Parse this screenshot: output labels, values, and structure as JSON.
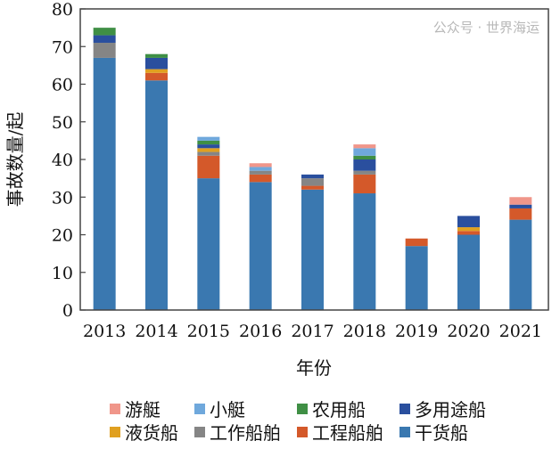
{
  "chart_data": {
    "type": "bar",
    "stacked": true,
    "xlabel": "年份",
    "ylabel": "事故数量/起",
    "ylim": [
      0,
      80
    ],
    "yticks": [
      0,
      10,
      20,
      30,
      40,
      50,
      60,
      70,
      80
    ],
    "grid": false,
    "legend_placement": "bottom",
    "categories": [
      "2013",
      "2014",
      "2015",
      "2016",
      "2017",
      "2018",
      "2019",
      "2020",
      "2021"
    ],
    "series": [
      {
        "name": "干货船",
        "color": "#3a78b0",
        "values": [
          67,
          61,
          35,
          34,
          32,
          31,
          17,
          20,
          24
        ]
      },
      {
        "name": "工程船舶",
        "color": "#d4592a",
        "values": [
          0,
          2,
          6,
          2,
          1,
          5,
          2,
          1,
          3
        ]
      },
      {
        "name": "工作船舶",
        "color": "#858585",
        "values": [
          4,
          0,
          1,
          1,
          2,
          1,
          0,
          0,
          0
        ]
      },
      {
        "name": "液货船",
        "color": "#e0a020",
        "values": [
          0,
          1,
          1,
          0,
          0,
          0,
          0,
          1,
          0
        ]
      },
      {
        "name": "多用途船",
        "color": "#2a4f9e",
        "values": [
          2,
          3,
          1,
          0,
          1,
          3,
          0,
          3,
          1
        ]
      },
      {
        "name": "农用船",
        "color": "#3f8f45",
        "values": [
          2,
          1,
          1,
          0,
          0,
          1,
          0,
          0,
          0
        ]
      },
      {
        "name": "小艇",
        "color": "#6fa8dc",
        "values": [
          0,
          0,
          1,
          1,
          0,
          2,
          0,
          0,
          0
        ]
      },
      {
        "name": "游艇",
        "color": "#f0968a",
        "values": [
          0,
          0,
          0,
          1,
          0,
          1,
          0,
          0,
          2
        ]
      }
    ],
    "legend_order": [
      "游艇",
      "小艇",
      "农用船",
      "多用途船",
      "液货船",
      "工作船舶",
      "工程船舶",
      "干货船"
    ]
  },
  "watermark": "公众号 · 世界海运"
}
